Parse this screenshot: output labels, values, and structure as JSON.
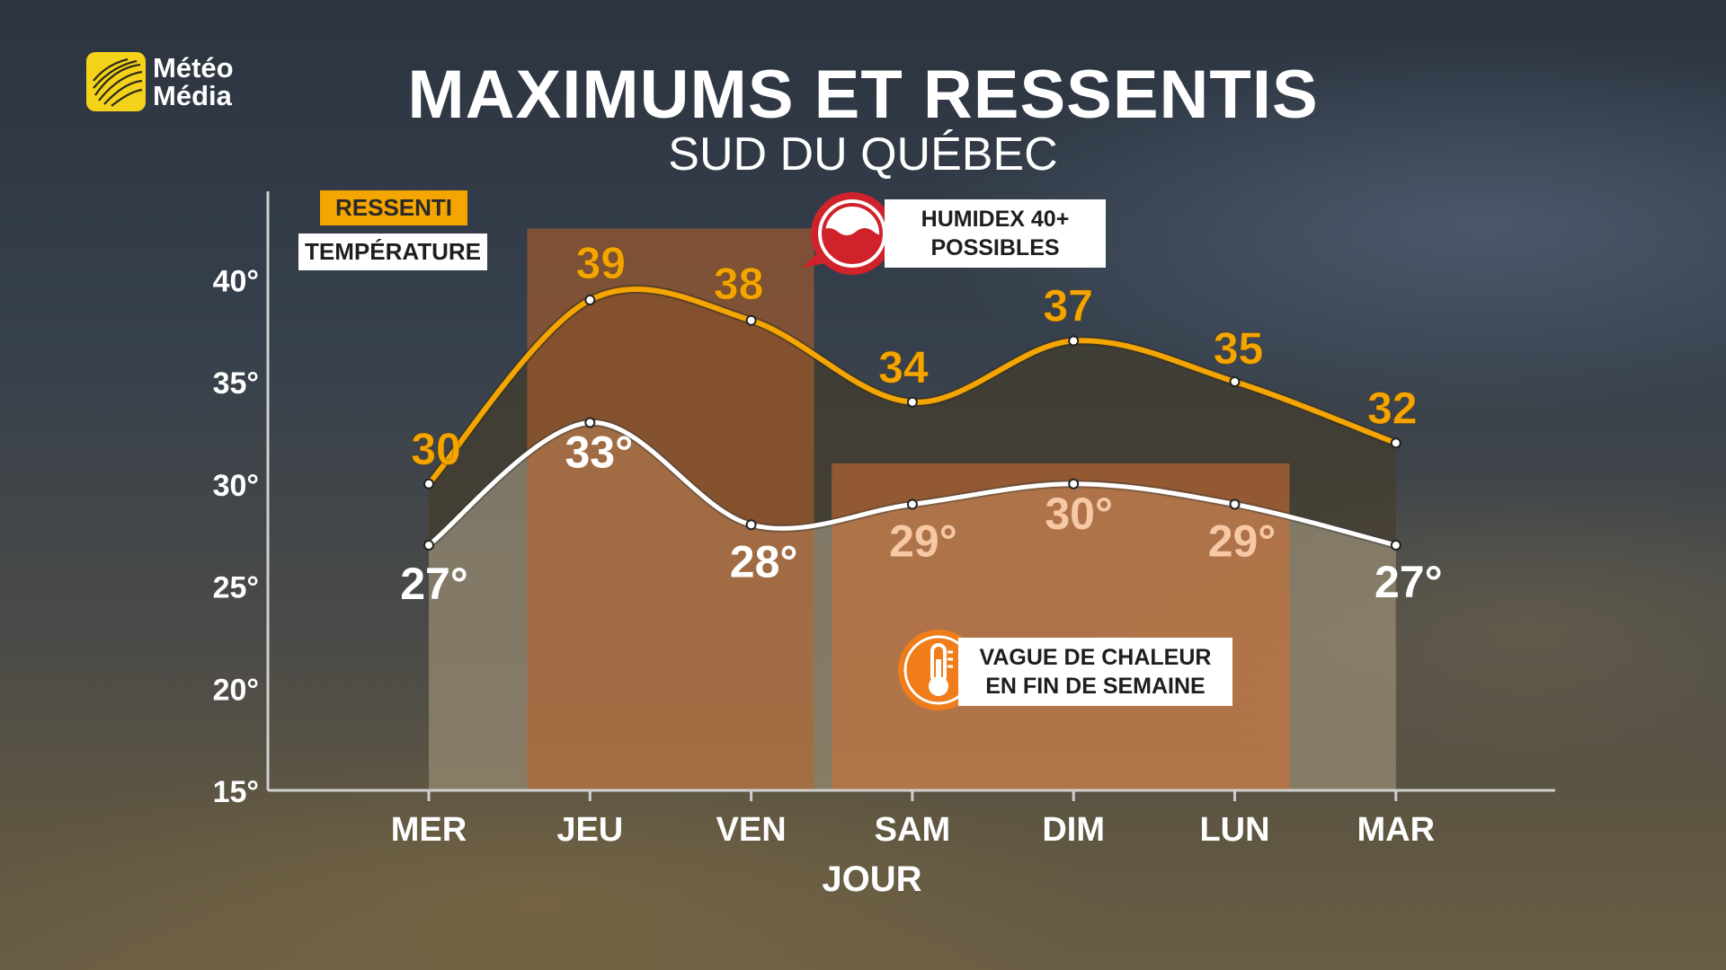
{
  "header": {
    "title": "MAXIMUMS ET RESSENTIS",
    "subtitle": "SUD DU QUÉBEC",
    "logo_line1": "Météo",
    "logo_line2": "Média"
  },
  "legend": {
    "feels_like": "RESSENTI",
    "temperature": "TEMPÉRATURE"
  },
  "callouts": {
    "humidex_line1": "HUMIDEX 40+",
    "humidex_line2": "POSSIBLES",
    "heatwave_line1": "VAGUE DE CHALEUR",
    "heatwave_line2": "EN FIN DE SEMAINE"
  },
  "icons": {
    "humidex": "humidex-water-drop-icon",
    "heatwave": "thermometer-icon",
    "logo": "globe-logo-icon"
  },
  "colors": {
    "feels_like": "#f5a500",
    "temperature": "#ffffff",
    "logo": "#f5d21a",
    "humidex_icon": "#d0222a",
    "heat_icon": "#f07d1a"
  },
  "chart_data": {
    "type": "line",
    "categories": [
      "MER",
      "JEU",
      "VEN",
      "SAM",
      "DIM",
      "LUN",
      "MAR"
    ],
    "xlabel": "JOUR",
    "ylabel": "",
    "ylim": [
      15,
      43
    ],
    "yticks": [
      15,
      20,
      25,
      30,
      35,
      40
    ],
    "ytick_labels": [
      "15°",
      "20°",
      "25°",
      "30°",
      "35°",
      "40°"
    ],
    "series": [
      {
        "name": "RESSENTI",
        "values": [
          30,
          39,
          38,
          34,
          37,
          35,
          32
        ],
        "labels": [
          "30",
          "39",
          "38",
          "34",
          "37",
          "35",
          "32"
        ]
      },
      {
        "name": "TEMPÉRATURE",
        "values": [
          27,
          33,
          28,
          29,
          30,
          29,
          27
        ],
        "labels": [
          "27°",
          "33°",
          "28°",
          "29°",
          "30°",
          "29°",
          "27°"
        ]
      }
    ],
    "highlights": [
      {
        "from": "JEU",
        "to": "VEN",
        "note": "HUMIDEX 40+ POSSIBLES"
      },
      {
        "from": "SAM",
        "to": "LUN",
        "note": "VAGUE DE CHALEUR EN FIN DE SEMAINE"
      }
    ]
  }
}
